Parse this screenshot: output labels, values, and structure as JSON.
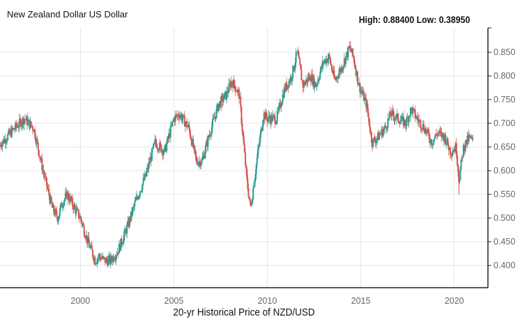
{
  "chart_data": {
    "type": "candlestick",
    "title": "New Zealand Dollar US Dollar",
    "stats": "High: 0.88400 Low: 0.38950",
    "xlabel": "20-yr Historical Price of NZD/USD",
    "ylabel": "",
    "xlim": [
      1995.7,
      2021.8
    ],
    "ylim": [
      0.353,
      0.9015
    ],
    "x_ticks": [
      2000,
      2005,
      2010,
      2015,
      2020
    ],
    "x_tick_labels": [
      "2000",
      "2005",
      "2010",
      "2015",
      "2020"
    ],
    "y_ticks": [
      0.4,
      0.45,
      0.5,
      0.55,
      0.6,
      0.65,
      0.7,
      0.75,
      0.8,
      0.85
    ],
    "y_tick_labels": [
      "0.400",
      "0.450",
      "0.500",
      "0.550",
      "0.600",
      "0.650",
      "0.700",
      "0.750",
      "0.800",
      "0.850"
    ],
    "grid": true,
    "colors": {
      "up": "#2a9d8f",
      "down": "#d9534f"
    },
    "price_path": [
      [
        1995.7,
        0.655
      ],
      [
        1996.5,
        0.69
      ],
      [
        1997.0,
        0.71
      ],
      [
        1997.5,
        0.69
      ],
      [
        1998.0,
        0.6
      ],
      [
        1998.5,
        0.52
      ],
      [
        1998.8,
        0.5
      ],
      [
        1999.0,
        0.53
      ],
      [
        1999.3,
        0.55
      ],
      [
        1999.7,
        0.52
      ],
      [
        2000.0,
        0.5
      ],
      [
        2000.4,
        0.45
      ],
      [
        2000.8,
        0.41
      ],
      [
        2001.0,
        0.42
      ],
      [
        2001.3,
        0.41
      ],
      [
        2001.6,
        0.41
      ],
      [
        2002.0,
        0.43
      ],
      [
        2002.5,
        0.48
      ],
      [
        2003.0,
        0.54
      ],
      [
        2003.5,
        0.59
      ],
      [
        2004.0,
        0.66
      ],
      [
        2004.5,
        0.64
      ],
      [
        2005.0,
        0.71
      ],
      [
        2005.3,
        0.72
      ],
      [
        2005.8,
        0.69
      ],
      [
        2006.2,
        0.62
      ],
      [
        2006.5,
        0.62
      ],
      [
        2007.0,
        0.69
      ],
      [
        2007.4,
        0.74
      ],
      [
        2007.8,
        0.76
      ],
      [
        2008.1,
        0.79
      ],
      [
        2008.5,
        0.76
      ],
      [
        2008.9,
        0.58
      ],
      [
        2009.1,
        0.52
      ],
      [
        2009.5,
        0.64
      ],
      [
        2009.8,
        0.72
      ],
      [
        2010.0,
        0.71
      ],
      [
        2010.5,
        0.71
      ],
      [
        2010.9,
        0.77
      ],
      [
        2011.3,
        0.8
      ],
      [
        2011.6,
        0.85
      ],
      [
        2011.9,
        0.78
      ],
      [
        2012.3,
        0.8
      ],
      [
        2012.6,
        0.78
      ],
      [
        2013.0,
        0.83
      ],
      [
        2013.3,
        0.84
      ],
      [
        2013.6,
        0.79
      ],
      [
        2014.0,
        0.82
      ],
      [
        2014.4,
        0.86
      ],
      [
        2014.6,
        0.84
      ],
      [
        2014.9,
        0.78
      ],
      [
        2015.3,
        0.74
      ],
      [
        2015.6,
        0.66
      ],
      [
        2015.9,
        0.67
      ],
      [
        2016.3,
        0.69
      ],
      [
        2016.6,
        0.72
      ],
      [
        2017.0,
        0.71
      ],
      [
        2017.4,
        0.7
      ],
      [
        2017.7,
        0.73
      ],
      [
        2018.0,
        0.71
      ],
      [
        2018.4,
        0.69
      ],
      [
        2018.8,
        0.66
      ],
      [
        2019.1,
        0.68
      ],
      [
        2019.5,
        0.67
      ],
      [
        2019.8,
        0.64
      ],
      [
        2020.1,
        0.65
      ],
      [
        2020.25,
        0.58
      ],
      [
        2020.5,
        0.65
      ],
      [
        2020.8,
        0.67
      ],
      [
        2021.0,
        0.66
      ]
    ]
  }
}
